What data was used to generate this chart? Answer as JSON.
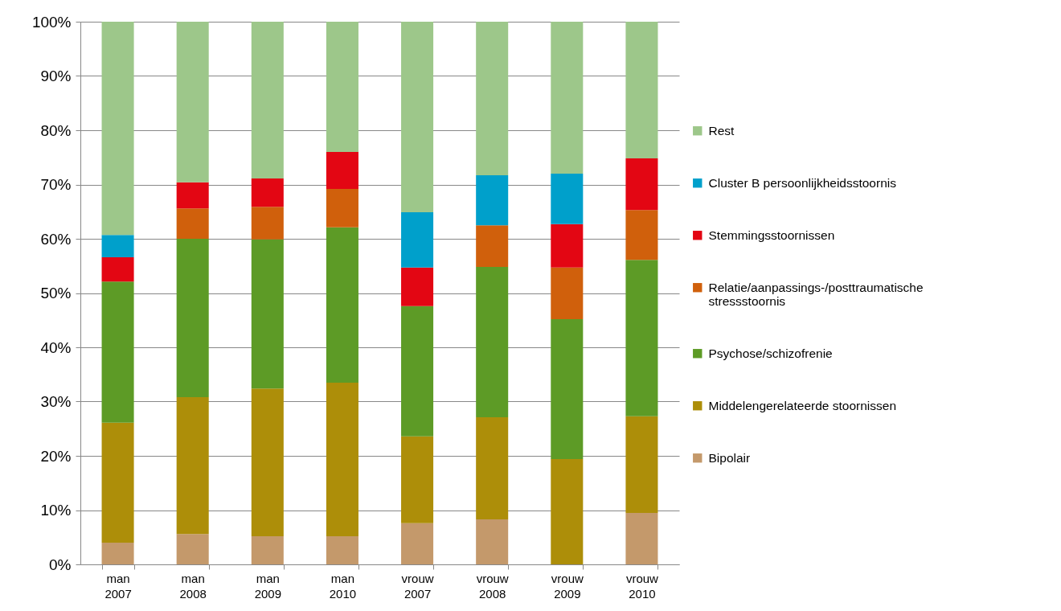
{
  "chart_data": {
    "type": "bar",
    "stacked": true,
    "categories": [
      "man 2007",
      "man 2008",
      "man 2009",
      "man 2010",
      "vrouw 2007",
      "vrouw 2008",
      "vrouw 2009",
      "vrouw 2010"
    ],
    "series": [
      {
        "name": "Bipolair",
        "color": "#c4996b",
        "values": [
          4.0,
          5.6,
          5.2,
          5.2,
          7.6,
          8.3,
          0,
          9.5
        ]
      },
      {
        "name": "Middelengerelateerde stoornissen",
        "color": "#ad8e09",
        "values": [
          22.1,
          25.2,
          27.2,
          28.3,
          16.0,
          18.8,
          19.4,
          17.8
        ]
      },
      {
        "name": "Psychose/schizofrenie",
        "color": "#5d9b26",
        "values": [
          26.0,
          29.2,
          27.5,
          28.6,
          24.0,
          27.7,
          25.8,
          28.8
        ]
      },
      {
        "name": "Relatie/aanpassings-/posttraumatische stressstoornis",
        "color": "#d0600c",
        "values": [
          0,
          5.6,
          6.0,
          7.1,
          0,
          7.7,
          9.5,
          9.2
        ]
      },
      {
        "name": "Stemmingsstoornissen",
        "color": "#e30613",
        "values": [
          4.5,
          4.8,
          5.2,
          6.8,
          7.1,
          0,
          8.0,
          9.5
        ]
      },
      {
        "name": "Cluster B persoonlijkheidsstoornis",
        "color": "#00a0cb",
        "values": [
          4.1,
          0,
          0,
          0,
          10.2,
          9.2,
          9.3,
          0
        ]
      },
      {
        "name": "Rest",
        "color": "#9dc78a",
        "values": [
          39.3,
          29.6,
          28.9,
          24.0,
          35.1,
          28.3,
          28.0,
          25.2
        ]
      }
    ],
    "ylim": [
      0,
      100
    ],
    "yticks": [
      {
        "value": 0,
        "label": "0%"
      },
      {
        "value": 10,
        "label": "10%"
      },
      {
        "value": 20,
        "label": "20%"
      },
      {
        "value": 30,
        "label": "30%"
      },
      {
        "value": 40,
        "label": "40%"
      },
      {
        "value": 50,
        "label": "50%"
      },
      {
        "value": 60,
        "label": "60%"
      },
      {
        "value": 70,
        "label": "70%"
      },
      {
        "value": 80,
        "label": "80%"
      },
      {
        "value": 90,
        "label": "90%"
      },
      {
        "value": 100,
        "label": "100%"
      }
    ],
    "grid": "y",
    "legend": "right"
  }
}
